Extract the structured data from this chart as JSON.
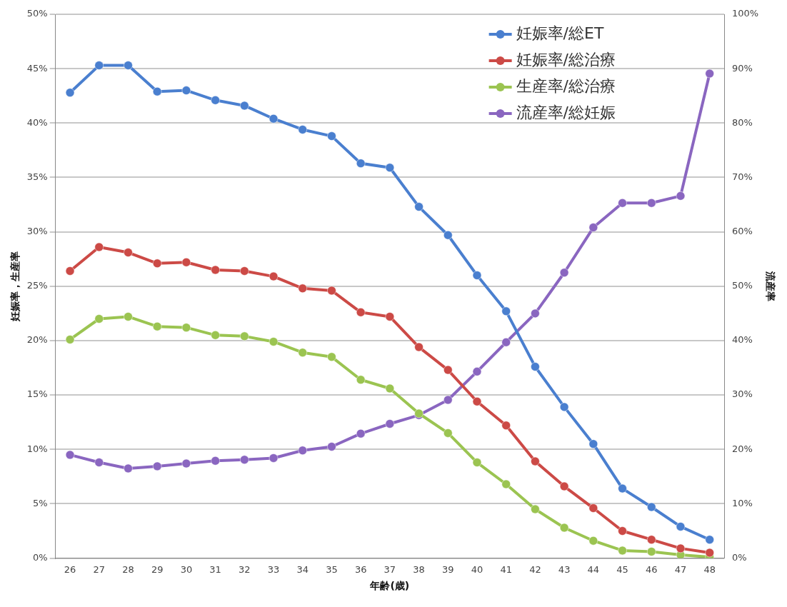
{
  "chart_data": {
    "type": "line",
    "xlabel": "年齢(歳)",
    "ylabel": "妊娠率，生産率",
    "y2label": "流産率",
    "categories": [
      "26",
      "27",
      "28",
      "29",
      "30",
      "31",
      "32",
      "33",
      "34",
      "35",
      "36",
      "37",
      "38",
      "39",
      "40",
      "41",
      "42",
      "43",
      "44",
      "45",
      "46",
      "47",
      "48"
    ],
    "series": [
      {
        "name": "妊娠率/総ET",
        "color": "#4a7fcf",
        "values": [
          42.8,
          45.3,
          45.3,
          42.9,
          43.0,
          42.1,
          41.6,
          40.4,
          39.4,
          38.8,
          36.3,
          35.9,
          32.3,
          29.7,
          26.0,
          22.7,
          17.6,
          13.9,
          10.5,
          6.4,
          4.7,
          2.9,
          1.7
        ]
      },
      {
        "name": "妊娠率/総治療",
        "color": "#cc4a46",
        "values": [
          26.4,
          28.6,
          28.1,
          27.1,
          27.2,
          26.5,
          26.4,
          25.9,
          24.8,
          24.6,
          22.6,
          22.2,
          19.4,
          17.3,
          14.4,
          12.2,
          8.9,
          6.6,
          4.6,
          2.5,
          1.7,
          0.9,
          0.5
        ]
      },
      {
        "name": "生産率/総治療",
        "color": "#9bc451",
        "values": [
          20.1,
          22.0,
          22.2,
          21.3,
          21.2,
          20.5,
          20.4,
          19.9,
          18.9,
          18.5,
          16.4,
          15.6,
          13.3,
          11.5,
          8.8,
          6.8,
          4.5,
          2.8,
          1.6,
          0.7,
          0.6,
          0.3,
          0.1
        ]
      },
      {
        "name": "流産率/総妊娠",
        "color": "#8a66c0",
        "axis": "y2",
        "values": [
          19.0,
          17.6,
          16.5,
          16.9,
          17.4,
          17.9,
          18.1,
          18.4,
          19.8,
          20.5,
          22.9,
          24.7,
          26.3,
          29.1,
          34.3,
          39.7,
          45.0,
          52.5,
          60.8,
          65.3,
          65.3,
          66.6,
          89.1
        ]
      }
    ],
    "ylim": [
      0,
      50
    ],
    "yticks": [
      {
        "value": 0,
        "label": "0%"
      },
      {
        "value": 5,
        "label": "5%"
      },
      {
        "value": 10,
        "label": "10%"
      },
      {
        "value": 15,
        "label": "15%"
      },
      {
        "value": 20,
        "label": "20%"
      },
      {
        "value": 25,
        "label": "25%"
      },
      {
        "value": 30,
        "label": "30%"
      },
      {
        "value": 35,
        "label": "35%"
      },
      {
        "value": 40,
        "label": "40%"
      },
      {
        "value": 45,
        "label": "45%"
      },
      {
        "value": 50,
        "label": "50%"
      }
    ],
    "y2lim": [
      0,
      100
    ],
    "y2ticks": [
      {
        "value": 0,
        "label": "0%"
      },
      {
        "value": 10,
        "label": "10%"
      },
      {
        "value": 20,
        "label": "20%"
      },
      {
        "value": 30,
        "label": "30%"
      },
      {
        "value": 40,
        "label": "40%"
      },
      {
        "value": 50,
        "label": "50%"
      },
      {
        "value": 60,
        "label": "60%"
      },
      {
        "value": 70,
        "label": "70%"
      },
      {
        "value": 80,
        "label": "80%"
      },
      {
        "value": 90,
        "label": "90%"
      },
      {
        "value": 100,
        "label": "100%"
      }
    ],
    "grid": "y",
    "legend": "top right",
    "marker": "circle",
    "line_style": "solid"
  }
}
